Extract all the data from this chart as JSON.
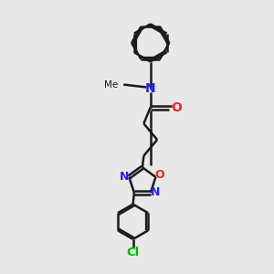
{
  "bg_color": "#e8e8e8",
  "bond_color": "#1a1a1a",
  "N_color": "#2020ff",
  "O_color": "#ff2020",
  "Cl_color": "#00bb00",
  "line_width": 1.8,
  "fig_size": [
    3.0,
    3.0
  ],
  "dpi": 100,
  "xlim": [
    0,
    10
  ],
  "ylim": [
    0,
    10
  ]
}
